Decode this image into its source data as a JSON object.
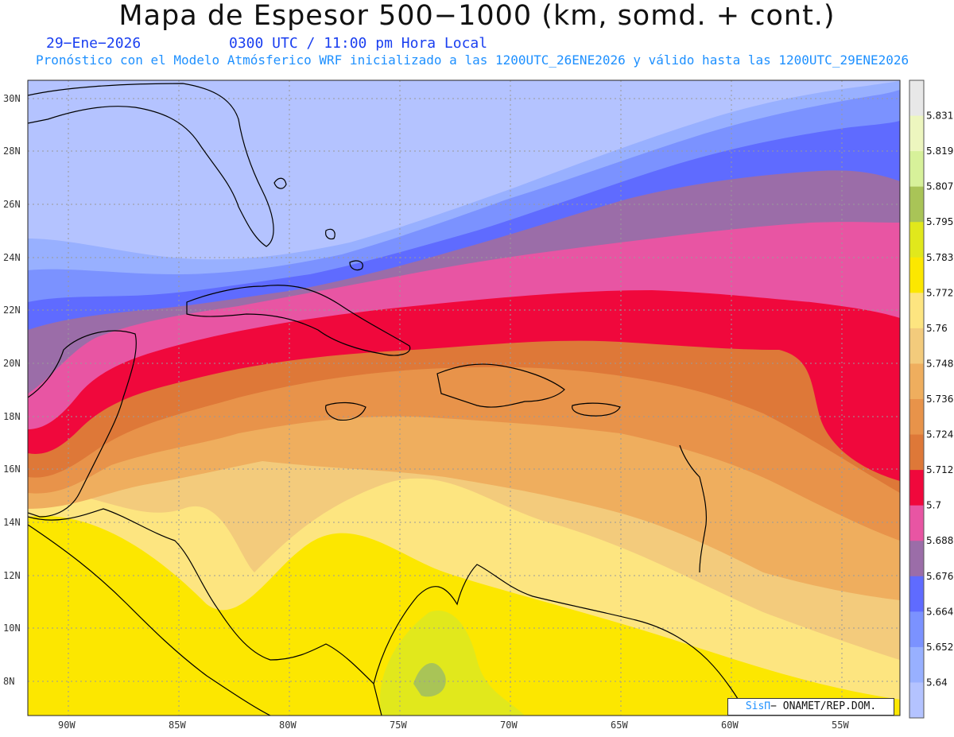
{
  "header": {
    "title": "Mapa de Espesor 500−1000 (km, somd. + cont.)",
    "date": "29−Ene−2026",
    "time": "0300 UTC / 11:00 pm Hora Local",
    "forecast": "Pronóstico con el Modelo Atmósferico WRF inicializado a las 1200UTC_26ENE2026 y válido hasta las  1200UTC_29ENE2026"
  },
  "axes": {
    "lat_labels": [
      "30N",
      "28N",
      "26N",
      "24N",
      "22N",
      "20N",
      "18N",
      "16N",
      "14N",
      "12N",
      "10N",
      "8N"
    ],
    "lon_labels": [
      "90W",
      "85W",
      "80W",
      "75W",
      "70W",
      "65W",
      "60W",
      "55W"
    ]
  },
  "colorbar": {
    "levels": [
      "5.64",
      "5.652",
      "5.664",
      "5.676",
      "5.688",
      "5.7",
      "5.712",
      "5.724",
      "5.736",
      "5.748",
      "5.76",
      "5.772",
      "5.783",
      "5.795",
      "5.807",
      "5.819",
      "5.831"
    ],
    "colors": [
      "#b4c3ff",
      "#98b0ff",
      "#7b92ff",
      "#5f6bff",
      "#9b6da8",
      "#e855a3",
      "#f0083c",
      "#de7838",
      "#e8934a",
      "#efae5e",
      "#f3cb7c",
      "#fde580",
      "#fce700",
      "#e1e81c",
      "#a9c457",
      "#d7f19a",
      "#edf6bf",
      "#e8e8e8"
    ]
  },
  "credit": {
    "logo": "SisΠ",
    "text": "− ONAMET/REP.DOM."
  }
}
